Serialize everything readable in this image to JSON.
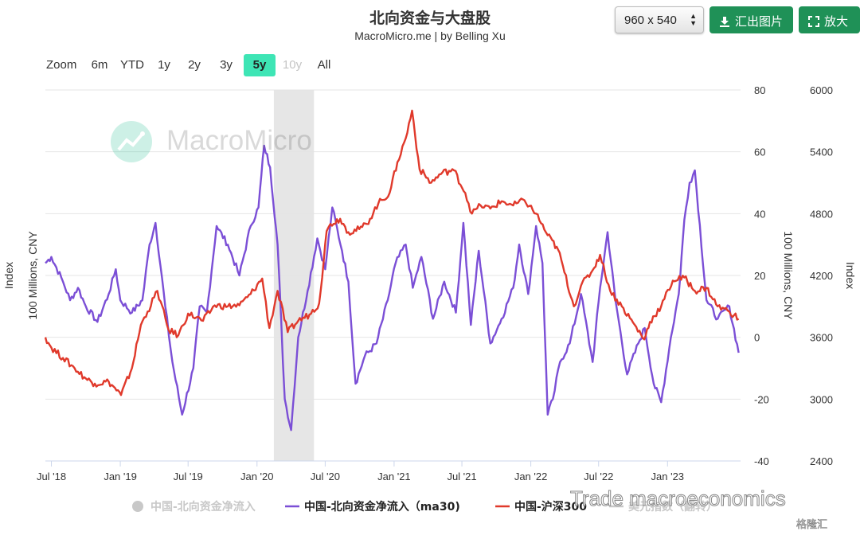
{
  "header": {
    "title": "北向资金与大盘股",
    "subtitle": "MacroMicro.me | by Belling Xu"
  },
  "toolbar": {
    "size_value": "960 x 540",
    "export_label": "汇出图片",
    "zoom_label": "放大"
  },
  "range_selector": {
    "label": "Zoom",
    "buttons": [
      {
        "label": "6m",
        "state": "normal"
      },
      {
        "label": "YTD",
        "state": "normal"
      },
      {
        "label": "1y",
        "state": "normal"
      },
      {
        "label": "2y",
        "state": "normal"
      },
      {
        "label": "3y",
        "state": "normal"
      },
      {
        "label": "5y",
        "state": "active"
      },
      {
        "label": "10y",
        "state": "disabled"
      },
      {
        "label": "All",
        "state": "normal"
      }
    ]
  },
  "watermark": {
    "text": "MacroMicro"
  },
  "credit_text": "Trade macroeconomics",
  "footer_badge": "格隆汇",
  "colors": {
    "purple": "#7b4fd6",
    "red": "#e0392b",
    "grey": "#c8c8c8",
    "accent": "#3ee5b5",
    "button": "#1f9157"
  },
  "chart_data": {
    "type": "line",
    "title": "北向资金与大盘股",
    "subtitle": "MacroMicro.me | by Belling Xu",
    "x_range": [
      "2018-06-15",
      "2023-07-15"
    ],
    "x_ticks": [
      "Jul '18",
      "Jan '19",
      "Jul '19",
      "Jan '20",
      "Jul '20",
      "Jan '21",
      "Jul '21",
      "Jan '22",
      "Jul '22",
      "Jan '23"
    ],
    "shaded_band": [
      "2020-02-15",
      "2020-06-01"
    ],
    "axes": {
      "left_outer": {
        "label": "Index"
      },
      "left_inner": {
        "label": "100 Millions, CNY"
      },
      "right_inner": {
        "label": "100 Millions, CNY",
        "ylim": [
          -40,
          80
        ],
        "ticks": [
          "80",
          "60",
          "40",
          "20",
          "0",
          "-20",
          "-40"
        ]
      },
      "right_outer": {
        "label": "Index",
        "ylim": [
          2400,
          6000
        ],
        "ticks": [
          "6000",
          "5400",
          "4800",
          "4200",
          "3600",
          "3000",
          "2400"
        ]
      }
    },
    "legend": {
      "placement": "bottom",
      "items": [
        {
          "name": "中国-北向资金净流入",
          "color": "#c8c8c8",
          "symbol": "dot",
          "disabled": true
        },
        {
          "name": "中国-北向资金净流入（ma30)",
          "color": "#7b4fd6",
          "symbol": "line"
        },
        {
          "name": "中国-沪深300",
          "color": "#e0392b",
          "symbol": "line"
        },
        {
          "name": "美元指数（翻转）",
          "color": "#c8c8c8",
          "symbol": "line",
          "disabled": true
        }
      ]
    },
    "series": [
      {
        "name": "中国-北向资金净流入（ma30)",
        "axis": "right_inner",
        "color": "#7b4fd6",
        "x": [
          "2018-06-15",
          "2018-07-01",
          "2018-08-01",
          "2018-08-20",
          "2018-09-10",
          "2018-10-01",
          "2018-11-01",
          "2018-12-01",
          "2018-12-20",
          "2019-01-01",
          "2019-02-01",
          "2019-03-01",
          "2019-03-20",
          "2019-04-05",
          "2019-05-01",
          "2019-05-20",
          "2019-06-15",
          "2019-07-15",
          "2019-08-01",
          "2019-08-20",
          "2019-09-15",
          "2019-10-15",
          "2019-11-15",
          "2019-12-15",
          "2020-01-05",
          "2020-01-20",
          "2020-02-05",
          "2020-02-25",
          "2020-03-15",
          "2020-04-01",
          "2020-04-20",
          "2020-05-15",
          "2020-06-10",
          "2020-07-01",
          "2020-07-20",
          "2020-08-15",
          "2020-09-01",
          "2020-09-20",
          "2020-10-15",
          "2020-11-15",
          "2020-12-15",
          "2021-01-05",
          "2021-02-01",
          "2021-02-20",
          "2021-03-15",
          "2021-04-15",
          "2021-05-15",
          "2021-06-15",
          "2021-07-05",
          "2021-07-25",
          "2021-08-15",
          "2021-09-15",
          "2021-10-15",
          "2021-11-15",
          "2021-12-01",
          "2021-12-25",
          "2022-01-15",
          "2022-02-01",
          "2022-02-15",
          "2022-03-01",
          "2022-03-20",
          "2022-04-15",
          "2022-05-15",
          "2022-06-15",
          "2022-07-05",
          "2022-07-25",
          "2022-08-15",
          "2022-09-15",
          "2022-10-15",
          "2022-11-01",
          "2022-11-25",
          "2022-12-15",
          "2023-01-10",
          "2023-01-31",
          "2023-02-15",
          "2023-03-01",
          "2023-03-15",
          "2023-04-15",
          "2023-05-15",
          "2023-06-15",
          "2023-07-10"
        ],
        "values": [
          24,
          26,
          18,
          12,
          16,
          10,
          5,
          14,
          22,
          12,
          8,
          12,
          30,
          37,
          10,
          -8,
          -25,
          -10,
          10,
          8,
          36,
          30,
          20,
          36,
          42,
          62,
          55,
          30,
          -20,
          -30,
          0,
          15,
          32,
          22,
          42,
          28,
          18,
          -15,
          -6,
          -2,
          12,
          24,
          30,
          16,
          26,
          6,
          18,
          8,
          37,
          4,
          28,
          -2,
          6,
          16,
          30,
          14,
          36,
          24,
          -25,
          -20,
          -8,
          -2,
          14,
          -8,
          16,
          34,
          12,
          -12,
          -2,
          3,
          -15,
          -21,
          0,
          14,
          38,
          50,
          54,
          12,
          6,
          10,
          -5
        ]
      },
      {
        "name": "中国-沪深300",
        "axis": "right_outer",
        "color": "#e0392b",
        "x": [
          "2018-06-15",
          "2018-07-01",
          "2018-08-01",
          "2018-09-01",
          "2018-10-01",
          "2018-10-25",
          "2018-12-01",
          "2019-01-03",
          "2019-02-01",
          "2019-02-25",
          "2019-03-15",
          "2019-04-10",
          "2019-05-10",
          "2019-06-05",
          "2019-07-01",
          "2019-08-10",
          "2019-09-10",
          "2019-10-15",
          "2019-11-15",
          "2019-12-15",
          "2020-01-15",
          "2020-02-03",
          "2020-02-25",
          "2020-03-23",
          "2020-04-20",
          "2020-05-20",
          "2020-06-15",
          "2020-07-05",
          "2020-07-15",
          "2020-08-10",
          "2020-09-01",
          "2020-09-30",
          "2020-10-20",
          "2020-11-20",
          "2020-12-20",
          "2021-01-10",
          "2021-02-01",
          "2021-02-18",
          "2021-03-10",
          "2021-04-10",
          "2021-05-10",
          "2021-06-10",
          "2021-07-10",
          "2021-07-28",
          "2021-08-20",
          "2021-09-15",
          "2021-10-15",
          "2021-11-15",
          "2021-12-15",
          "2022-01-15",
          "2022-02-15",
          "2022-03-15",
          "2022-04-26",
          "2022-05-15",
          "2022-06-15",
          "2022-07-05",
          "2022-08-01",
          "2022-09-01",
          "2022-10-31",
          "2022-11-15",
          "2022-12-15",
          "2023-01-15",
          "2023-02-15",
          "2023-03-15",
          "2023-04-15",
          "2023-05-15",
          "2023-06-15",
          "2023-07-10"
        ],
        "values": [
          3600,
          3500,
          3400,
          3300,
          3200,
          3150,
          3170,
          3040,
          3300,
          3720,
          3850,
          4050,
          3670,
          3620,
          3830,
          3760,
          3910,
          3900,
          3910,
          4020,
          4170,
          3690,
          4050,
          3650,
          3760,
          3820,
          3930,
          4630,
          4700,
          4750,
          4620,
          4650,
          4700,
          4900,
          5000,
          5300,
          5530,
          5800,
          5230,
          5100,
          5200,
          5220,
          5000,
          4800,
          4880,
          4850,
          4920,
          4880,
          4930,
          4800,
          4590,
          4450,
          3900,
          4100,
          4250,
          4400,
          4050,
          3900,
          3580,
          3750,
          3900,
          4150,
          4180,
          4050,
          4080,
          3900,
          3850,
          3780
        ]
      }
    ]
  }
}
